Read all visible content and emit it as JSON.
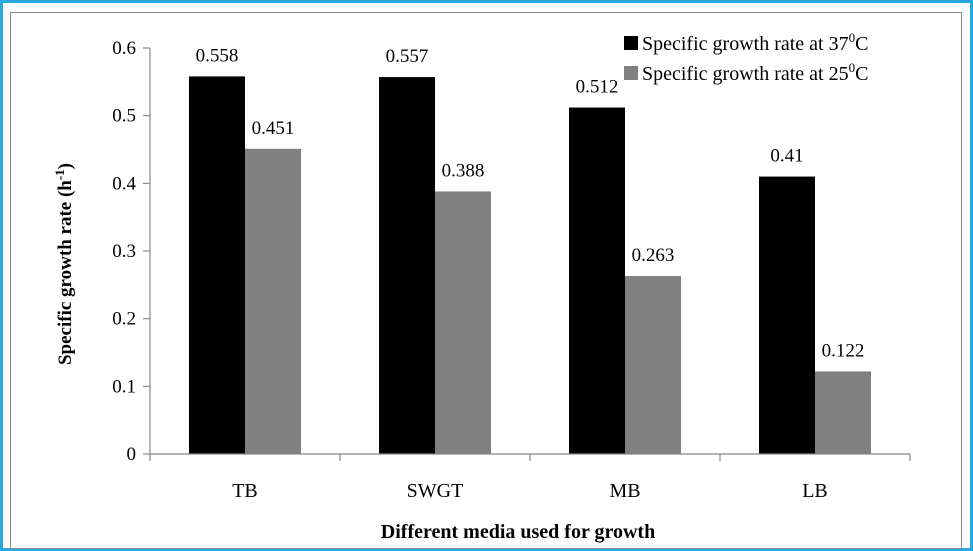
{
  "chart_data": {
    "type": "bar",
    "categories": [
      "TB",
      "SWGT",
      "MB",
      "LB"
    ],
    "series": [
      {
        "name": "Specific growth rate at 37°C",
        "legend_text": "Specific growth rate at 37",
        "legend_sup": "0",
        "legend_unit": "C",
        "values": [
          0.558,
          0.557,
          0.512,
          0.41
        ],
        "labels": [
          "0.558",
          "0.557",
          "0.512",
          "0.41"
        ],
        "color": "#000000"
      },
      {
        "name": "Specific growth rate at 25°C",
        "legend_text": "Specific growth rate at 25",
        "legend_sup": "0",
        "legend_unit": "C",
        "values": [
          0.451,
          0.388,
          0.263,
          0.122
        ],
        "labels": [
          "0.451",
          "0.388",
          "0.263",
          "0.122"
        ],
        "color": "#808080"
      }
    ],
    "xlabel": "Different media used for growth",
    "ylabel_text": "Specific growth rate (h",
    "ylabel_sup": "-1",
    "ylabel_end": ")",
    "ylim": [
      0,
      0.6
    ],
    "yticks": [
      0,
      0.1,
      0.2,
      0.3,
      0.4,
      0.5,
      0.6
    ],
    "ytick_labels": [
      "0",
      "0.1",
      "0.2",
      "0.3",
      "0.4",
      "0.5",
      "0.6"
    ],
    "legend_position": "top-right",
    "grid": false
  },
  "colors": {
    "frame_border": "#29a8e0",
    "inner_border": "#8a8a8a"
  }
}
